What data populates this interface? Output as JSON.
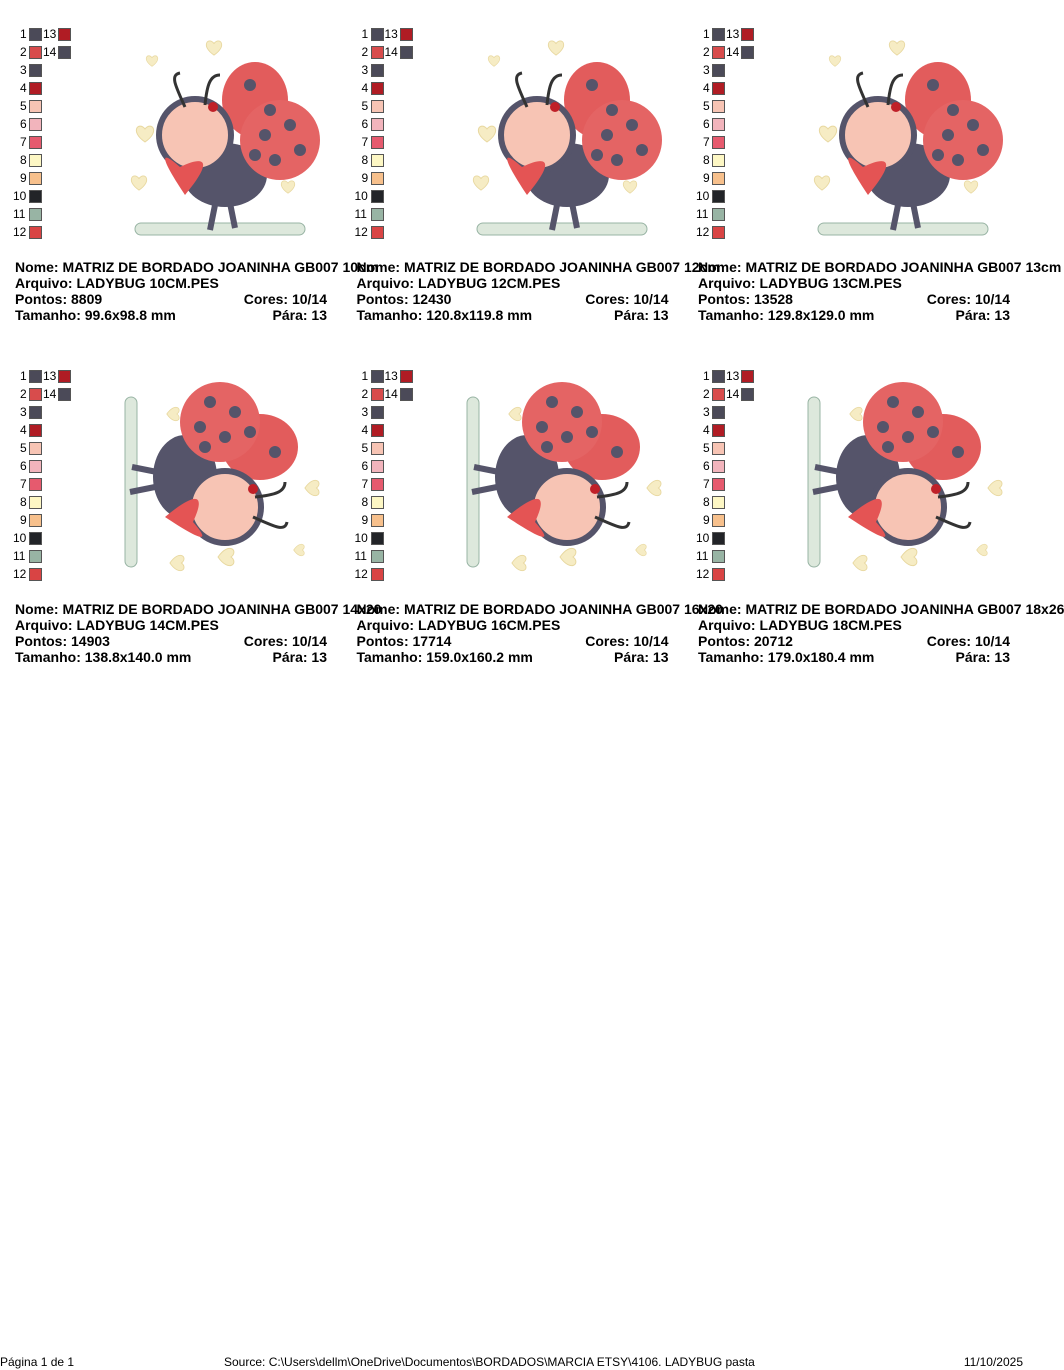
{
  "palette": [
    {
      "number": "1",
      "color": "#4b4a58"
    },
    {
      "number": "2",
      "color": "#d84c4c"
    },
    {
      "number": "3",
      "color": "#4b4a58"
    },
    {
      "number": "4",
      "color": "#b01c24"
    },
    {
      "number": "5",
      "color": "#f7c4b4"
    },
    {
      "number": "6",
      "color": "#f2b4bc"
    },
    {
      "number": "7",
      "color": "#e65a6e"
    },
    {
      "number": "8",
      "color": "#fdf7c4"
    },
    {
      "number": "9",
      "color": "#f7c08c"
    },
    {
      "number": "10",
      "color": "#222428"
    },
    {
      "number": "11",
      "color": "#98b4a4"
    },
    {
      "number": "12",
      "color": "#d94444"
    },
    {
      "number": "13",
      "color": "#b01c24"
    },
    {
      "number": "14",
      "color": "#4b4a58"
    }
  ],
  "designs": [
    {
      "name": "Nome: MATRIZ DE BORDADO JOANINHA GB007 10cm",
      "file": "Arquivo: LADYBUG 10CM.PES",
      "points": "Pontos: 8809",
      "colors": "Cores: 10/14",
      "size": "Tamanho: 99.6x98.8 mm",
      "stops": "Pára: 13"
    },
    {
      "name": "Nome: MATRIZ DE BORDADO JOANINHA GB007 12cm",
      "file": "Arquivo: LADYBUG 12CM.PES",
      "points": "Pontos: 12430",
      "colors": "Cores: 10/14",
      "size": "Tamanho: 120.8x119.8 mm",
      "stops": "Pára: 13"
    },
    {
      "name": "Nome: MATRIZ DE BORDADO JOANINHA GB007 13cm",
      "file": "Arquivo: LADYBUG 13CM.PES",
      "points": "Pontos: 13528",
      "colors": "Cores: 10/14",
      "size": "Tamanho: 129.8x129.0 mm",
      "stops": "Pára: 13"
    },
    {
      "name": "Nome: MATRIZ DE BORDADO JOANINHA GB007 14x20",
      "file": "Arquivo: LADYBUG 14CM.PES",
      "points": "Pontos: 14903",
      "colors": "Cores: 10/14",
      "size": "Tamanho: 138.8x140.0 mm",
      "stops": "Pára: 13"
    },
    {
      "name": "Nome: MATRIZ DE BORDADO JOANINHA GB007 16x20",
      "file": "Arquivo: LADYBUG 16CM.PES",
      "points": "Pontos: 17714",
      "colors": "Cores: 10/14",
      "size": "Tamanho: 159.0x160.2 mm",
      "stops": "Pára: 13"
    },
    {
      "name": "Nome: MATRIZ DE BORDADO JOANINHA GB007 18x26",
      "file": "Arquivo: LADYBUG 18CM.PES",
      "points": "Pontos: 20712",
      "colors": "Cores: 10/14",
      "size": "Tamanho: 179.0x180.4 mm",
      "stops": "Pára: 13"
    }
  ],
  "footer": {
    "page": "Página 1 de 1",
    "source": "Source: C:\\Users\\dellm\\OneDrive\\Documentos\\BORDADOS\\MARCIA ETSY\\4106. LADYBUG pasta",
    "date": "11/10/2025"
  }
}
